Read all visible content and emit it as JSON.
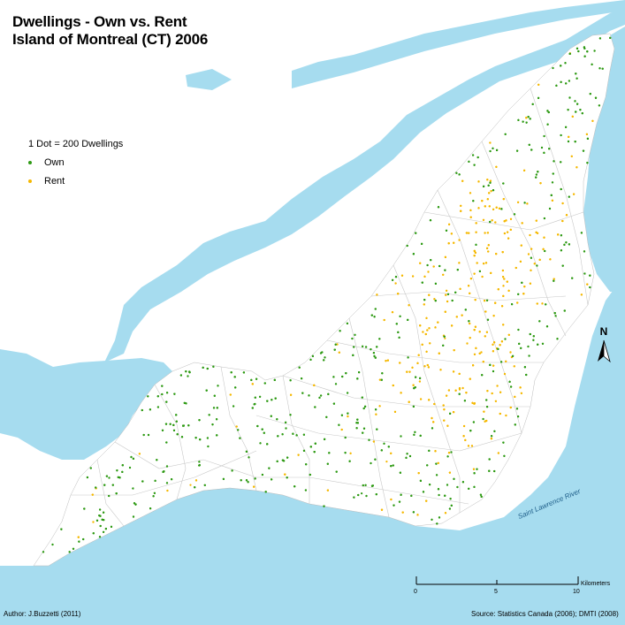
{
  "title": {
    "line1": "Dwellings - Own vs. Rent",
    "line2": "Island of Montreal (CT) 2006"
  },
  "legend": {
    "heading": "1 Dot = 200 Dwellings",
    "own_label": "Own",
    "rent_label": "Rent"
  },
  "colors": {
    "own": "#2e9a14",
    "rent": "#f5b800",
    "water": "#a6dcef",
    "land": "#ffffff",
    "tract_lines": "#c8c8c8"
  },
  "north_arrow": {
    "label": "N"
  },
  "scale_bar": {
    "unit": "Kilometers",
    "ticks": [
      "0",
      "5",
      "10"
    ]
  },
  "river_label": "Saint Lawrence River",
  "author": "Author: J.Buzzetti (2011)",
  "source": "Source: Statistics Canada (2006); DMTI (2008)"
}
